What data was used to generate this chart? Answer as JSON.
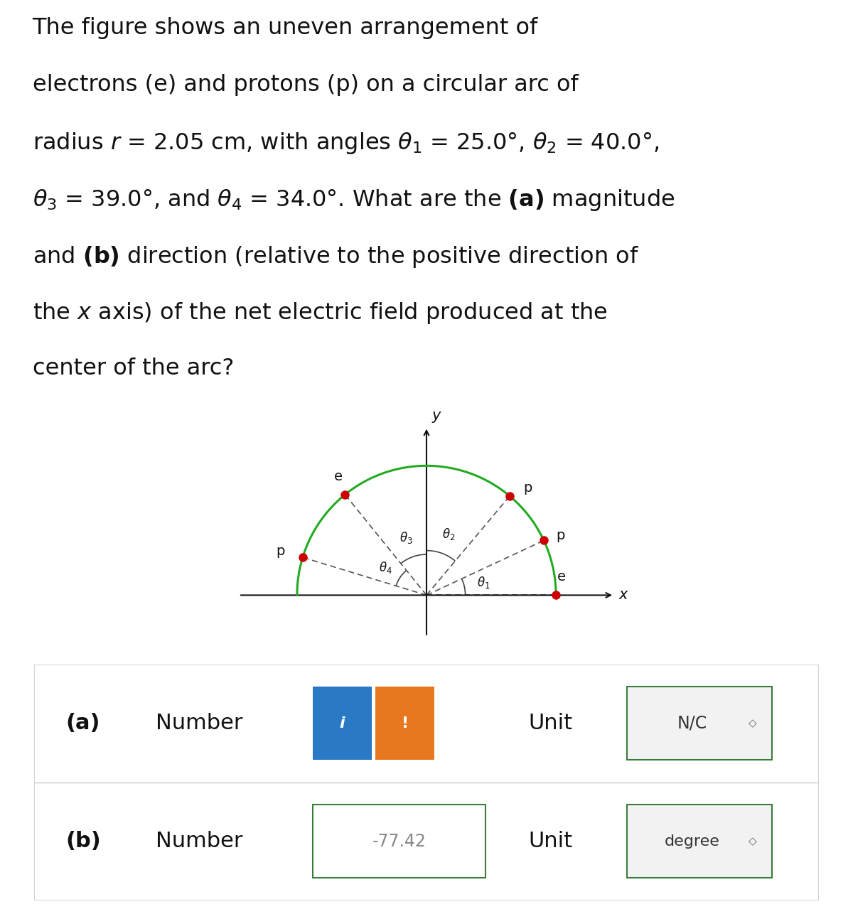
{
  "fig_bg": "#ffffff",
  "arc_color": "#22aa22",
  "particle_color": "#cc0000",
  "dashed_color": "#555555",
  "axis_color": "#111111",
  "angle_arc_color": "#444444",
  "label_color": "#111111",
  "theta1_deg": 25.0,
  "theta2_deg": 40.0,
  "theta3_deg": 39.0,
  "theta4_deg": 34.0,
  "answer_b_value": "-77.42",
  "unit_a": "N/C",
  "unit_b": "degree",
  "blue_btn": "#2979c4",
  "orange_btn": "#e87820",
  "box_green": "#3a7d3a",
  "text_fontsize": 23,
  "lines": [
    "The figure shows an uneven arrangement of",
    "electrons (e) and protons (p) on a circular arc of",
    "radius $r$ = 2.05 cm, with angles $\\theta_1$ = 25.0°, $\\theta_2$ = 40.0°,",
    "$\\theta_3$ = 39.0°, and $\\theta_4$ = 34.0°. What are the $\\mathbf{(a)}$ magnitude",
    "and $\\mathbf{(b)}$ direction (relative to the positive direction of",
    "the $x$ axis) of the net electric field produced at the",
    "center of the arc?"
  ]
}
